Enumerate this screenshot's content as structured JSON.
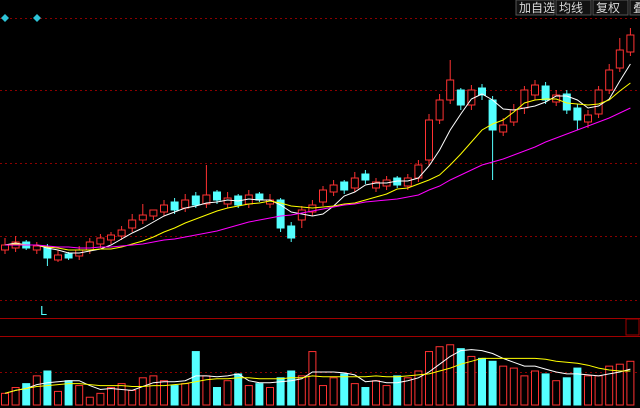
{
  "toolbar": {
    "buttons": [
      "加自选",
      "均线",
      "复权",
      "叠"
    ]
  },
  "panel_label": "L",
  "chart_data": [
    {
      "type": "candlestick",
      "up_color": "#ff3232",
      "down_color": "#54ffff",
      "ylim": [
        0,
        300
      ],
      "open": [
        50,
        52,
        58,
        50,
        52,
        40,
        46,
        44,
        50,
        56,
        60,
        64,
        72,
        80,
        84,
        88,
        98,
        92,
        104,
        96,
        108,
        96,
        104,
        96,
        106,
        96,
        100,
        74,
        80,
        88,
        98,
        108,
        118,
        112,
        126,
        112,
        114,
        122,
        114,
        122,
        140,
        180,
        200,
        210,
        195,
        212,
        200,
        168,
        178,
        192,
        205,
        214,
        198,
        206,
        192,
        178,
        186,
        210,
        232,
        248
      ],
      "high": [
        62,
        64,
        60,
        58,
        56,
        50,
        48,
        54,
        62,
        66,
        68,
        74,
        86,
        96,
        90,
        100,
        102,
        106,
        108,
        135,
        110,
        108,
        106,
        110,
        108,
        106,
        102,
        78,
        94,
        100,
        114,
        120,
        120,
        128,
        130,
        122,
        124,
        124,
        126,
        140,
        186,
        206,
        240,
        212,
        215,
        216,
        204,
        182,
        196,
        214,
        220,
        218,
        210,
        210,
        196,
        190,
        214,
        236,
        262,
        272
      ],
      "low": [
        46,
        48,
        50,
        46,
        34,
        38,
        40,
        40,
        46,
        52,
        56,
        60,
        68,
        76,
        80,
        84,
        86,
        88,
        92,
        92,
        96,
        92,
        92,
        92,
        98,
        92,
        68,
        58,
        72,
        84,
        94,
        104,
        106,
        108,
        116,
        108,
        110,
        112,
        110,
        118,
        134,
        176,
        196,
        190,
        190,
        200,
        120,
        164,
        174,
        186,
        200,
        196,
        194,
        186,
        170,
        172,
        182,
        206,
        228,
        244
      ],
      "close": [
        55,
        58,
        52,
        54,
        42,
        45,
        42,
        50,
        58,
        62,
        65,
        70,
        80,
        85,
        90,
        95,
        90,
        100,
        95,
        105,
        100,
        102,
        95,
        105,
        100,
        100,
        72,
        62,
        90,
        95,
        110,
        115,
        110,
        122,
        120,
        118,
        120,
        115,
        122,
        135,
        180,
        200,
        220,
        195,
        210,
        205,
        170,
        175,
        190,
        210,
        215,
        200,
        205,
        190,
        180,
        185,
        210,
        230,
        250,
        265
      ],
      "series": [
        {
          "color": "#ffffff",
          "values": [
            55,
            57,
            55,
            55,
            52,
            50,
            47,
            47,
            49,
            51,
            55,
            61,
            67,
            72,
            78,
            84,
            88,
            92,
            94,
            97,
            98,
            100,
            99,
            101,
            100,
            100,
            95,
            88,
            86,
            84,
            86,
            94,
            104,
            108,
            115,
            117,
            117,
            119,
            119,
            122,
            134,
            150,
            170,
            186,
            201,
            206,
            200,
            191,
            190,
            192,
            194,
            198,
            204,
            204,
            200,
            192,
            194,
            201,
            219,
            236
          ]
        },
        {
          "color": "#ffff00",
          "values": [
            55,
            56,
            55,
            55,
            53,
            52,
            50,
            50,
            50,
            51,
            51,
            53,
            56,
            59,
            63,
            68,
            72,
            77,
            81,
            85,
            89,
            92,
            94,
            96,
            97,
            99,
            97,
            94,
            93,
            92,
            93,
            94,
            96,
            97,
            100,
            103,
            106,
            111,
            112,
            116,
            120,
            125,
            135,
            146,
            158,
            170,
            176,
            180,
            188,
            197,
            200,
            201,
            201,
            197,
            196,
            195,
            196,
            200,
            209,
            217
          ]
        },
        {
          "color": "#ff00ff",
          "values": [
            55,
            55,
            55,
            55,
            54,
            53,
            53,
            52,
            52,
            53,
            53,
            54,
            55,
            56,
            58,
            60,
            61,
            63,
            65,
            67,
            69,
            72,
            75,
            78,
            80,
            82,
            84,
            85,
            87,
            89,
            91,
            93,
            95,
            96,
            98,
            99,
            100,
            101,
            103,
            105,
            110,
            114,
            120,
            125,
            130,
            135,
            138,
            141,
            145,
            149,
            153,
            158,
            162,
            166,
            170,
            174,
            178,
            182,
            187,
            192
          ]
        }
      ]
    },
    {
      "type": "bar",
      "up_color": "#ff3232",
      "down_color": "#54ffff",
      "ylim": [
        0,
        70
      ],
      "values": [
        12,
        18,
        22,
        30,
        35,
        14,
        25,
        20,
        8,
        12,
        18,
        22,
        15,
        28,
        30,
        25,
        20,
        22,
        55,
        30,
        18,
        25,
        32,
        20,
        22,
        18,
        28,
        35,
        30,
        55,
        20,
        28,
        32,
        22,
        18,
        25,
        20,
        30,
        28,
        35,
        55,
        60,
        62,
        58,
        50,
        48,
        45,
        40,
        38,
        30,
        35,
        32,
        25,
        28,
        38,
        30,
        30,
        40,
        42,
        45
      ],
      "series": [
        {
          "color": "#ffffff",
          "values": [
            12,
            15,
            17,
            21,
            23,
            24,
            25,
            25,
            20,
            16,
            17,
            16,
            15,
            19,
            23,
            24,
            24,
            25,
            30,
            30,
            29,
            30,
            32,
            25,
            23,
            23,
            24,
            25,
            27,
            34,
            34,
            34,
            33,
            31,
            24,
            25,
            23,
            23,
            25,
            28,
            34,
            42,
            50,
            56,
            57,
            56,
            53,
            48,
            44,
            40,
            40,
            37,
            34,
            32,
            32,
            31,
            30,
            32,
            34,
            37
          ]
        },
        {
          "color": "#ffff00",
          "values": [
            12,
            15,
            17,
            19,
            20,
            21,
            22,
            22,
            21,
            20,
            20,
            20,
            19,
            19,
            20,
            20,
            21,
            22,
            24,
            26,
            27,
            27,
            28,
            28,
            27,
            27,
            27,
            28,
            28,
            30,
            29,
            29,
            29,
            29,
            29,
            30,
            29,
            29,
            30,
            31,
            32,
            35,
            38,
            42,
            45,
            48,
            48,
            48,
            48,
            48,
            48,
            47,
            45,
            44,
            43,
            41,
            38,
            36,
            35,
            35
          ]
        }
      ]
    }
  ]
}
